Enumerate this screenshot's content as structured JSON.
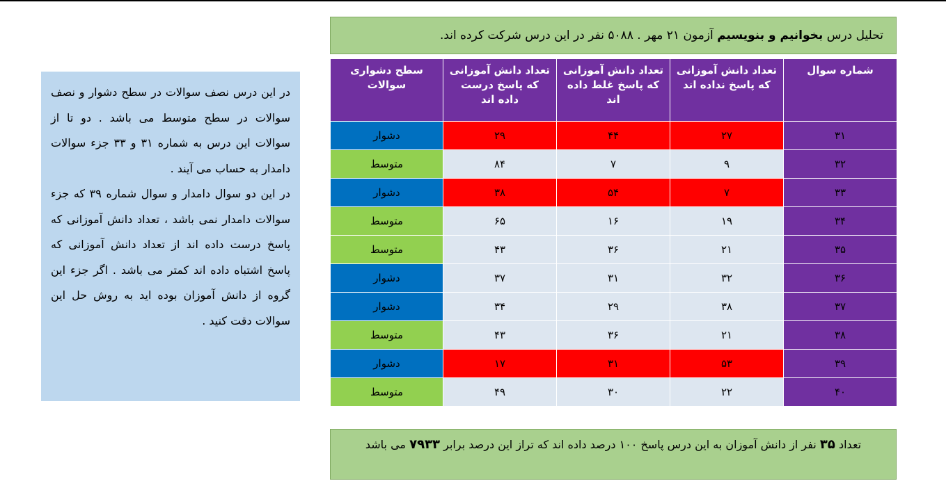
{
  "header": {
    "prefix": "تحلیل درس",
    "subject": "بخوانیم و بنویسیم",
    "suffix": "آزمون ۲۱ مهر . ۵۰۸۸ نفر در این درس شرکت کرده اند."
  },
  "table": {
    "columns": [
      "شماره سوال",
      "تعداد دانش آموزانی که پاسخ نداده اند",
      "تعداد دانش آموزانی که پاسخ غلط داده اند",
      "تعداد دانش آموزانی که پاسخ درست داده اند",
      "سطح دشواری سوالات"
    ],
    "rows": [
      {
        "q": "۳۱",
        "unanswered": "۲۷",
        "wrong": "۴۴",
        "correct": "۲۹",
        "level": "دشوار",
        "red": true
      },
      {
        "q": "۳۲",
        "unanswered": "۹",
        "wrong": "۷",
        "correct": "۸۴",
        "level": "متوسط",
        "red": false
      },
      {
        "q": "۳۳",
        "unanswered": "۷",
        "wrong": "۵۴",
        "correct": "۳۸",
        "level": "دشوار",
        "red": true
      },
      {
        "q": "۳۴",
        "unanswered": "۱۹",
        "wrong": "۱۶",
        "correct": "۶۵",
        "level": "متوسط",
        "red": false
      },
      {
        "q": "۳۵",
        "unanswered": "۲۱",
        "wrong": "۳۶",
        "correct": "۴۳",
        "level": "متوسط",
        "red": false
      },
      {
        "q": "۳۶",
        "unanswered": "۳۲",
        "wrong": "۳۱",
        "correct": "۳۷",
        "level": "دشوار",
        "red": false
      },
      {
        "q": "۳۷",
        "unanswered": "۳۸",
        "wrong": "۲۹",
        "correct": "۳۴",
        "level": "دشوار",
        "red": false
      },
      {
        "q": "۳۸",
        "unanswered": "۲۱",
        "wrong": "۳۶",
        "correct": "۴۳",
        "level": "متوسط",
        "red": false
      },
      {
        "q": "۳۹",
        "unanswered": "۵۳",
        "wrong": "۳۱",
        "correct": "۱۷",
        "level": "دشوار",
        "red": true
      },
      {
        "q": "۴۰",
        "unanswered": "۲۲",
        "wrong": "۳۰",
        "correct": "۴۹",
        "level": "متوسط",
        "red": false
      }
    ]
  },
  "side_note": {
    "p1": "در این درس نصف سوالات در سطح دشوار و نصف سوالات در سطح متوسط می باشد . دو تا از سوالات این درس به شماره ۳۱ و ۳۳ جزء سوالات دامدار به حساب می آیند .",
    "p2": "در این دو سوال دامدار و سوال شماره ۳۹ که جزء سوالات دامدار نمی باشد ، تعداد دانش آموزانی که پاسخ درست داده اند از تعداد دانش آموزانی که پاسخ اشتباه داده اند کمتر می باشد . اگر جزء این گروه از دانش آموزان بوده اید به روش حل این سوالات دقت کنید ."
  },
  "footer": {
    "prefix": "تعداد",
    "count": "۳۵",
    "middle": "نفر از دانش آموزان به این درس پاسخ ۱۰۰ درصد داده اند که تراز این درصد برابر",
    "score": "۷۹۳۳",
    "suffix": "می باشد"
  },
  "colors": {
    "header_green": "#a9d08e",
    "purple": "#7030a0",
    "red": "#ff0000",
    "hard_blue": "#0070c0",
    "medium_green": "#92d050",
    "row_gray": "#dde6f0",
    "note_blue": "#bdd7ee"
  }
}
